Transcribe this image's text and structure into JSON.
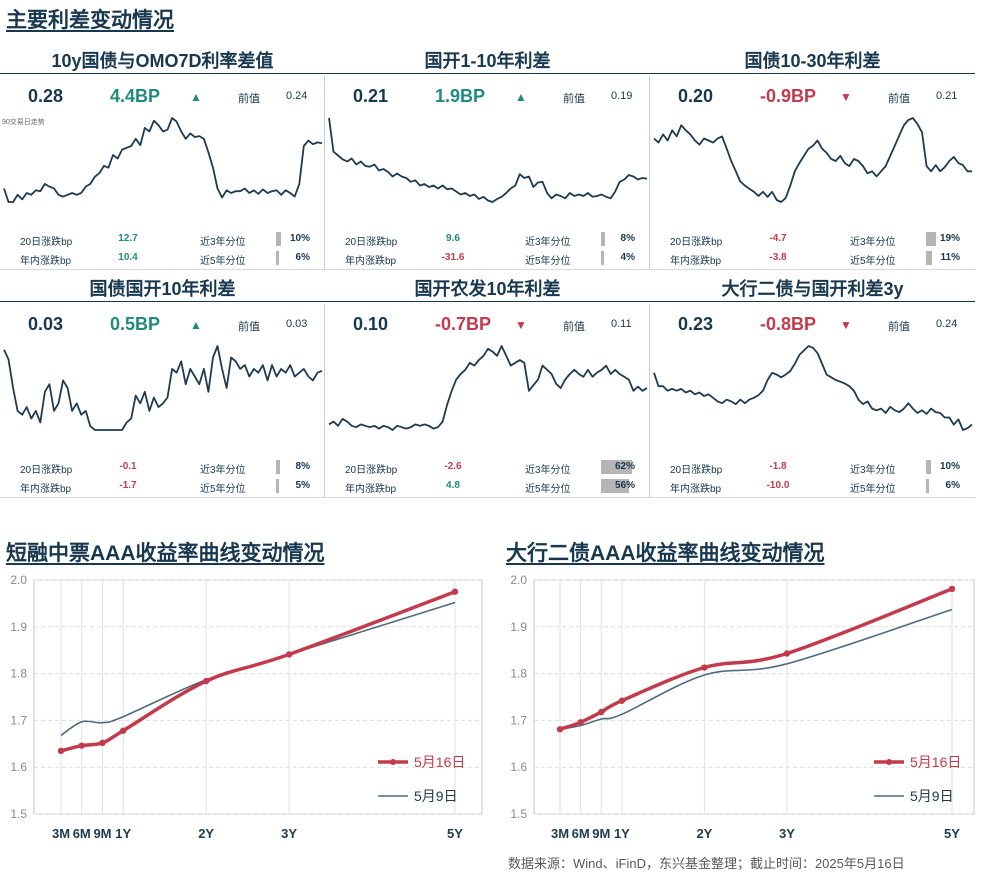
{
  "heading_top": "主要利差变动情况",
  "spread_panels": [
    {
      "title": "10y国债与OMO7D利率差值",
      "value": "0.28",
      "change": "4.4BP",
      "direction": "up",
      "prev_label": "前值",
      "prev": "0.24",
      "note": "90交易日走势",
      "d20_label": "20日涨跌bp",
      "d20": "12.7",
      "d20_dir": "up",
      "ytd_label": "年内涨跌bp",
      "ytd": "10.4",
      "ytd_dir": "up",
      "p3_label": "近3年分位",
      "p3": "10%",
      "p3_frac": 0.1,
      "p5_label": "近5年分位",
      "p5": "6%",
      "p5_frac": 0.06,
      "series": [
        0.235,
        0.22,
        0.22,
        0.228,
        0.223,
        0.23,
        0.228,
        0.233,
        0.232,
        0.24,
        0.237,
        0.235,
        0.228,
        0.226,
        0.228,
        0.23,
        0.228,
        0.23,
        0.237,
        0.24,
        0.248,
        0.252,
        0.26,
        0.258,
        0.272,
        0.268,
        0.278,
        0.28,
        0.282,
        0.29,
        0.283,
        0.302,
        0.298,
        0.31,
        0.305,
        0.298,
        0.3,
        0.313,
        0.309,
        0.298,
        0.29,
        0.296,
        0.292,
        0.293,
        0.29,
        0.275,
        0.258,
        0.235,
        0.225,
        0.233,
        0.23,
        0.232,
        0.232,
        0.235,
        0.23,
        0.233,
        0.229,
        0.234,
        0.23,
        0.232,
        0.233,
        0.228,
        0.233,
        0.23,
        0.226,
        0.24,
        0.282,
        0.288,
        0.284,
        0.286,
        0.285
      ]
    },
    {
      "title": "国开1-10年利差",
      "value": "0.21",
      "change": "1.9BP",
      "direction": "up",
      "prev_label": "前值",
      "prev": "0.19",
      "d20_label": "20日涨跌bp",
      "d20": "9.6",
      "d20_dir": "up",
      "ytd_label": "年内涨跌bp",
      "ytd": "-31.6",
      "ytd_dir": "down",
      "p3_label": "近3年分位",
      "p3": "8%",
      "p3_frac": 0.08,
      "p5_label": "近5年分位",
      "p5": "4%",
      "p5_frac": 0.04,
      "series": [
        0.29,
        0.245,
        0.24,
        0.235,
        0.232,
        0.236,
        0.228,
        0.232,
        0.226,
        0.225,
        0.228,
        0.22,
        0.222,
        0.218,
        0.212,
        0.216,
        0.212,
        0.21,
        0.205,
        0.207,
        0.2,
        0.202,
        0.198,
        0.2,
        0.196,
        0.2,
        0.195,
        0.196,
        0.192,
        0.188,
        0.19,
        0.186,
        0.188,
        0.182,
        0.185,
        0.18,
        0.178,
        0.182,
        0.185,
        0.19,
        0.196,
        0.2,
        0.215,
        0.21,
        0.212,
        0.198,
        0.204,
        0.205,
        0.19,
        0.183,
        0.188,
        0.186,
        0.183,
        0.19,
        0.186,
        0.188,
        0.186,
        0.19,
        0.185,
        0.186,
        0.188,
        0.185,
        0.183,
        0.192,
        0.205,
        0.208,
        0.214,
        0.212,
        0.208,
        0.21,
        0.209
      ]
    },
    {
      "title": "国债10-30年利差",
      "value": "0.20",
      "change": "-0.9BP",
      "direction": "down",
      "prev_label": "前值",
      "prev": "0.21",
      "d20_label": "20日涨跌bp",
      "d20": "-4.7",
      "d20_dir": "down",
      "ytd_label": "年内涨跌bp",
      "ytd": "-3.8",
      "ytd_dir": "down",
      "p3_label": "近3年分位",
      "p3": "19%",
      "p3_frac": 0.19,
      "p5_label": "近5年分位",
      "p5": "11%",
      "p5_frac": 0.11,
      "series": [
        0.232,
        0.228,
        0.236,
        0.23,
        0.24,
        0.234,
        0.245,
        0.24,
        0.236,
        0.23,
        0.226,
        0.232,
        0.23,
        0.228,
        0.232,
        0.234,
        0.222,
        0.21,
        0.2,
        0.19,
        0.186,
        0.183,
        0.18,
        0.176,
        0.18,
        0.175,
        0.18,
        0.172,
        0.17,
        0.174,
        0.186,
        0.2,
        0.208,
        0.215,
        0.222,
        0.225,
        0.23,
        0.222,
        0.218,
        0.212,
        0.21,
        0.215,
        0.208,
        0.205,
        0.212,
        0.21,
        0.205,
        0.198,
        0.2,
        0.195,
        0.2,
        0.205,
        0.215,
        0.225,
        0.235,
        0.245,
        0.25,
        0.252,
        0.246,
        0.238,
        0.205,
        0.2,
        0.206,
        0.2,
        0.204,
        0.21,
        0.214,
        0.208,
        0.206,
        0.2,
        0.2
      ]
    },
    {
      "title": "国债国开10年利差",
      "value": "0.03",
      "change": "0.5BP",
      "direction": "up",
      "prev_label": "前值",
      "prev": "0.03",
      "d20_label": "20日涨跌bp",
      "d20": "-0.1",
      "d20_dir": "down",
      "ytd_label": "年内涨跌bp",
      "ytd": "-1.7",
      "ytd_dir": "down",
      "p3_label": "近3年分位",
      "p3": "8%",
      "p3_frac": 0.08,
      "p5_label": "近5年分位",
      "p5": "5%",
      "p5_frac": 0.05,
      "series": [
        0.06,
        0.055,
        0.04,
        0.028,
        0.026,
        0.03,
        0.024,
        0.028,
        0.022,
        0.038,
        0.042,
        0.028,
        0.032,
        0.044,
        0.04,
        0.028,
        0.032,
        0.026,
        0.028,
        0.02,
        0.018,
        0.018,
        0.018,
        0.018,
        0.018,
        0.018,
        0.018,
        0.022,
        0.024,
        0.036,
        0.032,
        0.038,
        0.028,
        0.035,
        0.03,
        0.032,
        0.035,
        0.05,
        0.048,
        0.054,
        0.042,
        0.05,
        0.046,
        0.042,
        0.05,
        0.038,
        0.056,
        0.062,
        0.05,
        0.04,
        0.056,
        0.054,
        0.05,
        0.052,
        0.046,
        0.05,
        0.048,
        0.052,
        0.044,
        0.052,
        0.046,
        0.05,
        0.048,
        0.052,
        0.046,
        0.048,
        0.05,
        0.046,
        0.044,
        0.048,
        0.049
      ]
    },
    {
      "title": "国开农发10年利差",
      "value": "0.10",
      "change": "-0.7BP",
      "direction": "down",
      "prev_label": "前值",
      "prev": "0.11",
      "d20_label": "20日涨跌bp",
      "d20": "-2.6",
      "d20_dir": "down",
      "ytd_label": "年内涨跌bp",
      "ytd": "4.8",
      "ytd_dir": "up",
      "p3_label": "近3年分位",
      "p3": "62%",
      "p3_frac": 0.62,
      "p5_label": "近5年分位",
      "p5": "56%",
      "p5_frac": 0.56,
      "series": [
        0.076,
        0.078,
        0.075,
        0.08,
        0.078,
        0.075,
        0.074,
        0.076,
        0.075,
        0.074,
        0.075,
        0.073,
        0.075,
        0.074,
        0.072,
        0.075,
        0.074,
        0.073,
        0.074,
        0.076,
        0.075,
        0.076,
        0.075,
        0.073,
        0.074,
        0.078,
        0.09,
        0.1,
        0.108,
        0.112,
        0.115,
        0.12,
        0.118,
        0.122,
        0.125,
        0.13,
        0.128,
        0.125,
        0.132,
        0.125,
        0.118,
        0.12,
        0.122,
        0.12,
        0.1,
        0.104,
        0.108,
        0.118,
        0.115,
        0.112,
        0.105,
        0.102,
        0.108,
        0.112,
        0.115,
        0.112,
        0.11,
        0.115,
        0.11,
        0.113,
        0.115,
        0.118,
        0.112,
        0.115,
        0.112,
        0.11,
        0.108,
        0.1,
        0.103,
        0.1,
        0.102
      ]
    },
    {
      "title": "大行二债与国开利差3y",
      "value": "0.23",
      "change": "-0.8BP",
      "direction": "down",
      "prev_label": "前值",
      "prev": "0.24",
      "d20_label": "20日涨跌bp",
      "d20": "-1.8",
      "d20_dir": "down",
      "ytd_label": "年内涨跌bp",
      "ytd": "-10.0",
      "ytd_dir": "down",
      "p3_label": "近3年分位",
      "p3": "10%",
      "p3_frac": 0.1,
      "p5_label": "近5年分位",
      "p5": "6%",
      "p5_frac": 0.06,
      "series": [
        0.29,
        0.275,
        0.275,
        0.27,
        0.272,
        0.27,
        0.272,
        0.268,
        0.27,
        0.266,
        0.268,
        0.264,
        0.266,
        0.262,
        0.258,
        0.256,
        0.26,
        0.258,
        0.255,
        0.26,
        0.256,
        0.26,
        0.262,
        0.265,
        0.27,
        0.282,
        0.29,
        0.288,
        0.285,
        0.288,
        0.292,
        0.3,
        0.31,
        0.315,
        0.32,
        0.318,
        0.312,
        0.3,
        0.288,
        0.285,
        0.282,
        0.28,
        0.278,
        0.275,
        0.27,
        0.26,
        0.255,
        0.258,
        0.25,
        0.248,
        0.25,
        0.245,
        0.252,
        0.248,
        0.246,
        0.25,
        0.256,
        0.25,
        0.245,
        0.248,
        0.244,
        0.25,
        0.246,
        0.245,
        0.24,
        0.24,
        0.232,
        0.238,
        0.226,
        0.228,
        0.232
      ]
    }
  ],
  "curve_headings": [
    "短融中票AAA收益率曲线变动情况",
    "大行二债AAA收益率曲线变动情况"
  ],
  "chart_data": [
    {
      "type": "line",
      "title": "短融中票AAA收益率曲线变动情况",
      "xlabel": "",
      "ylabel": "",
      "ylim": [
        1.5,
        2.0
      ],
      "yticks": [
        "1.5",
        "1.6",
        "1.7",
        "1.8",
        "1.9",
        "2.0"
      ],
      "x": [
        "3M",
        "6M",
        "9M",
        "1Y",
        "2Y",
        "3Y",
        "5Y"
      ],
      "x_positions": [
        0.25,
        0.5,
        0.75,
        1,
        2,
        3,
        5
      ],
      "grid": true,
      "legend_position": "bottom-right",
      "series": [
        {
          "name": "5月16日",
          "color": "#c33a4c",
          "markers": true,
          "values": [
            1.635,
            1.646,
            1.652,
            1.678,
            1.784,
            1.841,
            1.975
          ]
        },
        {
          "name": "5月9日",
          "color": "#4f6b80",
          "markers": false,
          "values": [
            1.668,
            1.697,
            1.695,
            1.708,
            1.787,
            1.841,
            1.952
          ]
        }
      ]
    },
    {
      "type": "line",
      "title": "大行二债AAA收益率曲线变动情况",
      "xlabel": "",
      "ylabel": "",
      "ylim": [
        1.5,
        2.0
      ],
      "yticks": [
        "1.5",
        "1.6",
        "1.7",
        "1.8",
        "1.9",
        "2.0"
      ],
      "x": [
        "3M",
        "6M",
        "9M",
        "1Y",
        "2Y",
        "3Y",
        "5Y"
      ],
      "x_positions": [
        0.25,
        0.5,
        0.75,
        1,
        2,
        3,
        5
      ],
      "grid": true,
      "legend_position": "bottom-right",
      "series": [
        {
          "name": "5月16日",
          "color": "#c33a4c",
          "markers": true,
          "values": [
            1.681,
            1.696,
            1.718,
            1.742,
            1.813,
            1.843,
            1.981
          ]
        },
        {
          "name": "5月9日",
          "color": "#4f6b80",
          "markers": false,
          "values": [
            1.681,
            1.689,
            1.703,
            1.713,
            1.797,
            1.821,
            1.937
          ]
        }
      ]
    }
  ],
  "source": "数据来源：Wind、iFinD，东兴基金整理；截止时间：2025年5月16日",
  "colors": {
    "up": "#1e8c7b",
    "down": "#c33a4c",
    "navy": "#17384f",
    "pct_bar": "#b5b5b5"
  }
}
